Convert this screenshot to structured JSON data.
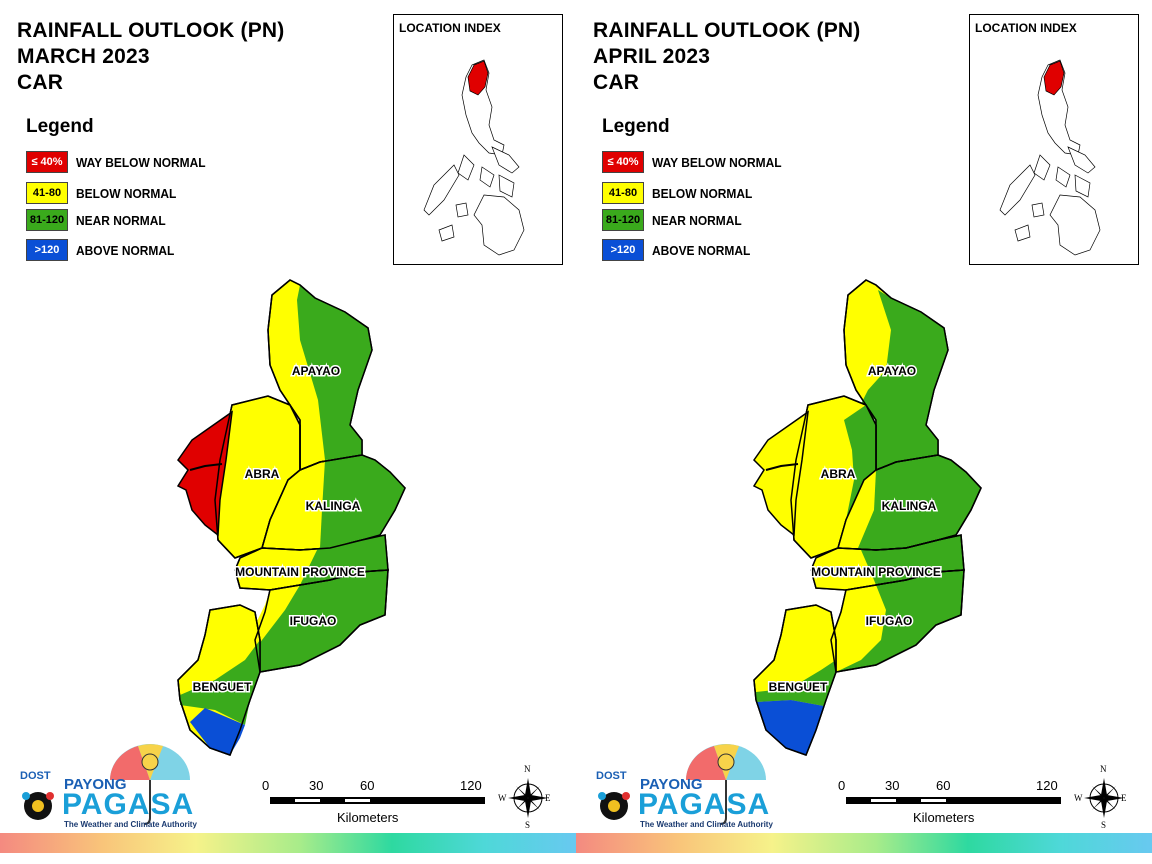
{
  "panels": [
    {
      "title": [
        "RAINFALL OUTLOOK (PN)",
        "MARCH 2023",
        "CAR"
      ],
      "legend": {
        "heading": "Legend",
        "items": [
          {
            "range": "≤ 40%",
            "label": "WAY BELOW NORMAL",
            "color": "#e00000",
            "text_color": "#ffffff"
          },
          {
            "range": "41-80",
            "label": "BELOW NORMAL",
            "color": "#ffff00",
            "text_color": "#000000"
          },
          {
            "range": "81-120",
            "label": "NEAR NORMAL",
            "color": "#3aaa1c",
            "text_color": "#000000"
          },
          {
            "range": ">120",
            "label": "ABOVE NORMAL",
            "color": "#0a4fd6",
            "text_color": "#ffffff"
          }
        ]
      },
      "location_index": {
        "title": "LOCATION INDEX"
      },
      "provinces": [
        "APAYAO",
        "ABRA",
        "KALINGA",
        "MOUNTAIN PROVINCE",
        "IFUGAO",
        "BENGUET"
      ],
      "scale": {
        "ticks": [
          "0",
          "30",
          "60",
          "120"
        ],
        "unit": "Kilometers"
      },
      "compass": {
        "n": "N",
        "e": "E",
        "s": "S",
        "w": "W"
      },
      "logo": {
        "dost": "DOST",
        "payong": "PAYONG",
        "pagasa": "PAGASA",
        "tagline": "The Weather and Climate Authority"
      }
    },
    {
      "title": [
        "RAINFALL OUTLOOK (PN)",
        "APRIL 2023",
        "CAR"
      ],
      "legend": {
        "heading": "Legend",
        "items": [
          {
            "range": "≤ 40%",
            "label": "WAY BELOW NORMAL",
            "color": "#e00000",
            "text_color": "#ffffff"
          },
          {
            "range": "41-80",
            "label": "BELOW NORMAL",
            "color": "#ffff00",
            "text_color": "#000000"
          },
          {
            "range": "81-120",
            "label": "NEAR NORMAL",
            "color": "#3aaa1c",
            "text_color": "#000000"
          },
          {
            "range": ">120",
            "label": "ABOVE NORMAL",
            "color": "#0a4fd6",
            "text_color": "#ffffff"
          }
        ]
      },
      "location_index": {
        "title": "LOCATION INDEX"
      },
      "provinces": [
        "APAYAO",
        "ABRA",
        "KALINGA",
        "MOUNTAIN PROVINCE",
        "IFUGAO",
        "BENGUET"
      ],
      "scale": {
        "ticks": [
          "0",
          "30",
          "60",
          "120"
        ],
        "unit": "Kilometers"
      },
      "compass": {
        "n": "N",
        "e": "E",
        "s": "S",
        "w": "W"
      },
      "logo": {
        "dost": "DOST",
        "payong": "PAYONG",
        "pagasa": "PAGASA",
        "tagline": "The Weather and Climate Authority"
      }
    }
  ]
}
